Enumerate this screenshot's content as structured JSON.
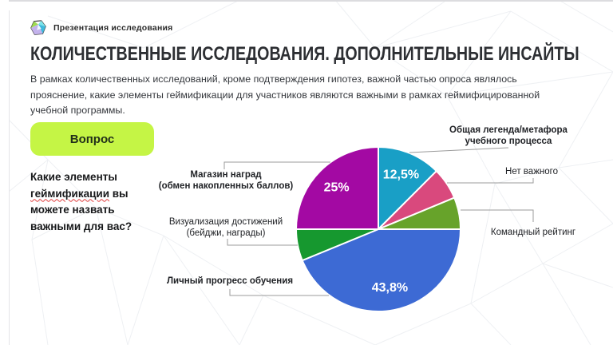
{
  "theme": {
    "accent_green": "#c5f545",
    "leader_line_color": "#9b9b9b"
  },
  "header": {
    "app_title": "Презентация исследования",
    "logo_icon": "gem-logo-icon"
  },
  "slide": {
    "title": "КОЛИЧЕСТВЕННЫЕ ИССЛЕДОВАНИЯ. ДОПОЛНИТЕЛЬНЫЕ ИНСАЙТЫ",
    "intro": "В рамках количественных исследований, кроме подтверждения гипотез, важной частью опроса являлось\nпрояснение, какие элементы геймификации для участников являются важными в рамках геймифицированной\nучебной программы.",
    "question_tag": "Вопрос",
    "question": {
      "before": "Какие элементы ",
      "misspelled": "геймификации",
      "after": " вы можете назвать важными для вас?"
    }
  },
  "chart_data": {
    "type": "pie",
    "start_angle_deg": 0,
    "direction": "clockwise",
    "unit": "%",
    "legend_position": "callout-labels",
    "slices": [
      {
        "id": "common-legend",
        "label": "Общая легенда/метафора учебного процесса",
        "label_display": "Общая легенда/метафора\nучебного процесса",
        "value": 12.5,
        "pct_label": "12,5%",
        "color": "#199fc6",
        "emphasis": true
      },
      {
        "id": "nothing-important",
        "label": "Нет важного",
        "label_display": "Нет важного",
        "value": 6.25,
        "pct_label": "",
        "color": "#d9497d",
        "emphasis": false
      },
      {
        "id": "team-rating",
        "label": "Командный рейтинг",
        "label_display": "Командный рейтинг",
        "value": 6.25,
        "pct_label": "",
        "color": "#67a32a",
        "emphasis": false
      },
      {
        "id": "personal-progress",
        "label": "Личный прогресс обучения",
        "label_display": "Личный прогресс обучения",
        "value": 43.8,
        "pct_label": "43,8%",
        "color": "#3d6ad4",
        "emphasis": true
      },
      {
        "id": "achievements-visualization",
        "label": "Визуализация достижений (бейджи, награды)",
        "label_display": "Визуализация достижений\n(бейджи, награды)",
        "value": 6.2,
        "pct_label": "",
        "color": "#16982f",
        "emphasis": false
      },
      {
        "id": "rewards-shop",
        "label": "Магазин наград (обмен накопленных баллов)",
        "label_display": "Магазин наград\n(обмен накопленных баллов)",
        "value": 25,
        "pct_label": "25%",
        "color": "#a309a3",
        "emphasis": true
      }
    ]
  }
}
